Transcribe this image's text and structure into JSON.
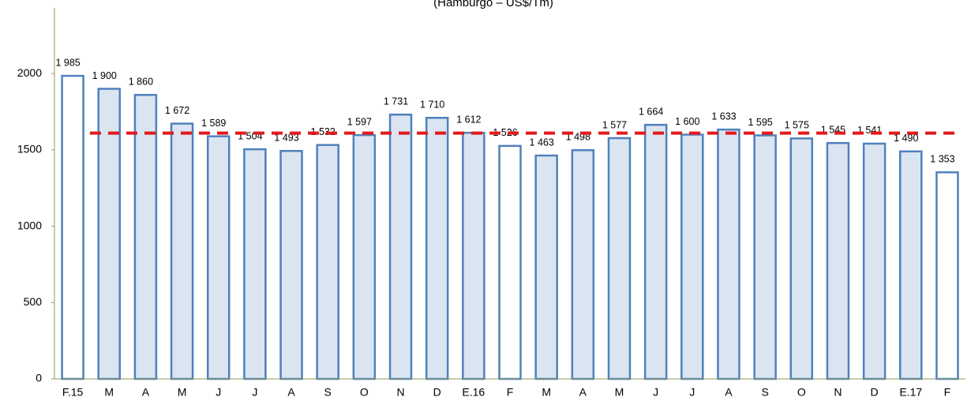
{
  "chart_data": {
    "type": "bar",
    "subtitle": "(Hamburgo – US$/Tm)",
    "categories": [
      "F.15",
      "M",
      "A",
      "M",
      "J",
      "J",
      "A",
      "S",
      "O",
      "N",
      "D",
      "E.16",
      "F",
      "M",
      "A",
      "M",
      "J",
      "J",
      "A",
      "S",
      "O",
      "N",
      "D",
      "E.17",
      "F"
    ],
    "values": [
      1985,
      1900,
      1860,
      1672,
      1589,
      1504,
      1493,
      1532,
      1597,
      1731,
      1710,
      1612,
      1526,
      1463,
      1498,
      1577,
      1664,
      1600,
      1633,
      1595,
      1575,
      1545,
      1541,
      1490,
      1353
    ],
    "value_labels": [
      "1 985",
      "1 900",
      "1 860",
      "1 672",
      "1 589",
      "1 504",
      "1 493",
      "1 532",
      "1 597",
      "1 731",
      "1 710",
      "1 612",
      "1 526",
      "1 463",
      "1 498",
      "1 577",
      "1 664",
      "1 600",
      "1 633",
      "1 595",
      "1 575",
      "1 545",
      "1 541",
      "1 490",
      "1 353"
    ],
    "colors": [
      "#ffffff",
      "#dbe5f1",
      "#dbe5f1",
      "#dbe5f1",
      "#dbe5f1",
      "#dbe5f1",
      "#dbe5f1",
      "#dbe5f1",
      "#dbe5f1",
      "#dbe5f1",
      "#dbe5f1",
      "#dbe5f1",
      "#ffffff",
      "#dbe5f1",
      "#dbe5f1",
      "#dbe5f1",
      "#dbe5f1",
      "#dbe5f1",
      "#dbe5f1",
      "#dbe5f1",
      "#dbe5f1",
      "#dbe5f1",
      "#dbe5f1",
      "#dbe5f1",
      "#ffffff"
    ],
    "edge_color": "#4f81bd",
    "reference_line": {
      "value": 1610,
      "color": "#e31a1c"
    },
    "ylim": [
      0,
      2430
    ],
    "yticks": [
      0,
      500,
      1000,
      1500,
      2000
    ]
  }
}
